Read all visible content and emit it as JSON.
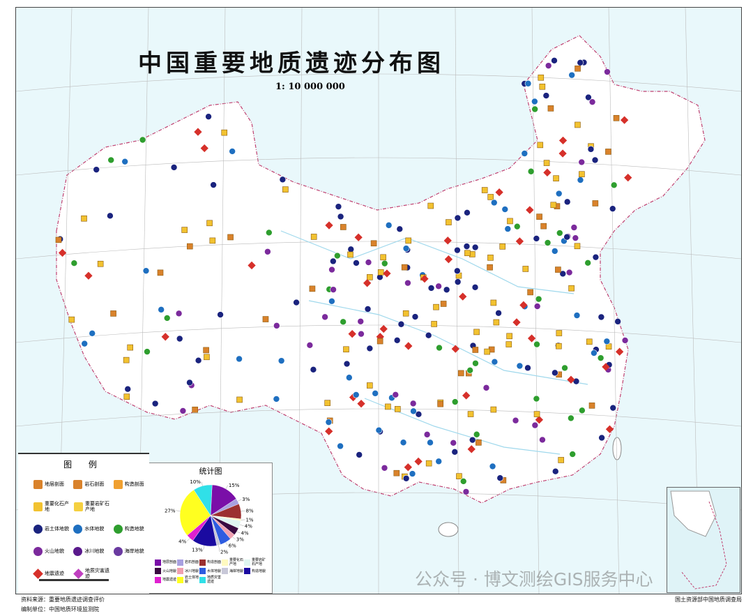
{
  "title": "中国重要地质遗迹分布图",
  "scale": "1: 10 000 000",
  "legend": {
    "title": "图 例",
    "items": [
      {
        "label": "地层剖面",
        "icon": "stratigraphic-section-icon",
        "color": "#d9822b"
      },
      {
        "label": "岩石剖面",
        "icon": "rock-section-icon",
        "color": "#d9822b"
      },
      {
        "label": "构造剖面",
        "icon": "tectonic-section-icon",
        "color": "#f0a030"
      },
      {
        "label": "重要化石产地",
        "icon": "fossil-site-icon",
        "color": "#f2c230"
      },
      {
        "label": "重要岩矿石产地",
        "icon": "mineral-site-icon",
        "color": "#f5d040"
      },
      {
        "label": "岩土体地貌",
        "icon": "rock-landform-icon",
        "color": "#1a237e"
      },
      {
        "label": "水体地貌",
        "icon": "water-landform-icon",
        "color": "#1e6fc0"
      },
      {
        "label": "构造地貌",
        "icon": "tectonic-landform-icon",
        "color": "#2e9e2e"
      },
      {
        "label": "火山地貌",
        "icon": "volcanic-landform-icon",
        "color": "#7b2a9c"
      },
      {
        "label": "冰川地貌",
        "icon": "glacial-landform-icon",
        "color": "#5a1a8c"
      },
      {
        "label": "海岸地貌",
        "icon": "coastal-landform-icon",
        "color": "#6a3aa0"
      },
      {
        "label": "地震遗迹",
        "icon": "earthquake-relic-icon",
        "color": "#d6302a"
      },
      {
        "label": "地质灾害遗迹",
        "icon": "geohazard-relic-icon",
        "color": "#c040c0"
      }
    ]
  },
  "chart_data": {
    "type": "pie",
    "title": "统计图",
    "slices": [
      {
        "label": "地层剖面",
        "value": 15,
        "color": "#7a0fa8"
      },
      {
        "label": "岩石剖面",
        "value": 3,
        "color": "#a8a0e0"
      },
      {
        "label": "构造剖面",
        "value": 8,
        "color": "#9c3030"
      },
      {
        "label": "重要化石产地",
        "value": 1,
        "color": "#fffac0"
      },
      {
        "label": "重要岩矿石产地",
        "value": 4,
        "color": "#dff5f0"
      },
      {
        "label": "火山地貌",
        "value": 4,
        "color": "#3a0a40"
      },
      {
        "label": "冰川地貌",
        "value": 3,
        "color": "#f0a0b0"
      },
      {
        "label": "水体地貌",
        "value": 6,
        "color": "#2e5ce0"
      },
      {
        "label": "海岸地貌",
        "value": 2,
        "color": "#c8c8d8"
      },
      {
        "label": "构造地貌",
        "value": 13,
        "color": "#1a0aa0"
      },
      {
        "label": "地震遗迹",
        "value": 4,
        "color": "#e020d0"
      },
      {
        "label": "岩土体地貌",
        "value": 27,
        "color": "#ffff20"
      },
      {
        "label": "地质灾害遗迹",
        "value": 10,
        "color": "#30e0e8"
      }
    ],
    "percent_labels": [
      "15%",
      "3%",
      "8%",
      "1%",
      "4%",
      "4%",
      "3%",
      "6%",
      "2%",
      "13%",
      "4%",
      "27%",
      "10%"
    ]
  },
  "footer": {
    "source": "资料来源：重要地质遗迹调查评价",
    "compiler": "编制单位：中国地质环境监测院",
    "publisher": "国土资源部中国地质调查局"
  },
  "watermark": "公众号 · 博文测绘GIS服务中心",
  "colors": {
    "sea": "#e9f8fb",
    "land": "#ffffff",
    "border": "#c04070"
  }
}
